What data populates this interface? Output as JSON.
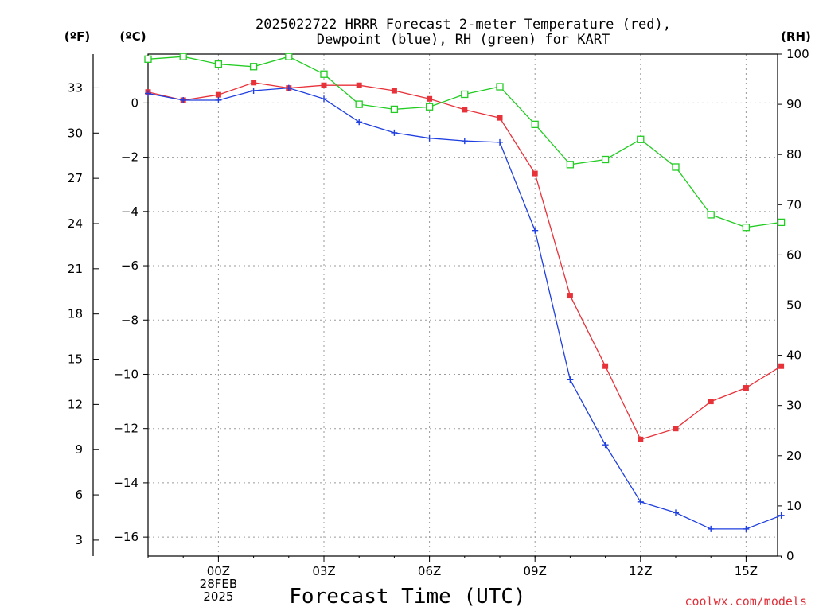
{
  "title_line1": "2025022722 HRRR Forecast 2-meter Temperature (red),",
  "title_line2": "Dewpoint (blue), RH (green) for KART",
  "unit_f": "(ºF)",
  "unit_c": "(ºC)",
  "unit_rh": "(RH)",
  "xlabel": "Forecast Time (UTC)",
  "credit": "coolwx.com/models",
  "colors": {
    "temperature": "#e8323a",
    "dewpoint": "#1f3fe0",
    "rh": "#22cc22"
  },
  "chart_data": {
    "type": "line",
    "x_unit": "UTC hour (forecast hours starting 2025-02-27 22Z)",
    "x": [
      "22Z",
      "23Z",
      "00Z",
      "01Z",
      "02Z",
      "03Z",
      "04Z",
      "05Z",
      "06Z",
      "07Z",
      "08Z",
      "09Z",
      "10Z",
      "11Z",
      "12Z",
      "13Z",
      "14Z",
      "15Z",
      "16Z"
    ],
    "x_ticks": [
      {
        "at": "00Z",
        "lines": [
          "00Z",
          "28FEB",
          "2025"
        ]
      },
      {
        "at": "03Z",
        "lines": [
          "03Z"
        ]
      },
      {
        "at": "06Z",
        "lines": [
          "06Z"
        ]
      },
      {
        "at": "09Z",
        "lines": [
          "09Z"
        ]
      },
      {
        "at": "12Z",
        "lines": [
          "12Z"
        ]
      },
      {
        "at": "15Z",
        "lines": [
          "15Z"
        ]
      }
    ],
    "y_left_c": {
      "range": [
        -16.7,
        1.8
      ],
      "ticks": [
        0,
        -2,
        -4,
        -6,
        -8,
        -10,
        -12,
        -14,
        -16
      ],
      "tick_labels": [
        "0",
        "−2",
        "−4",
        "−6",
        "−8",
        "−10",
        "−12",
        "−14",
        "−16"
      ]
    },
    "y_left_f": {
      "ticks": [
        33,
        30,
        27,
        24,
        21,
        18,
        15,
        12,
        9,
        6,
        3
      ],
      "tick_labels": [
        "33",
        "30",
        "27",
        "24",
        "21",
        "18",
        "15",
        "12",
        "9",
        "6",
        "3"
      ]
    },
    "y_right_rh": {
      "range": [
        0,
        100
      ],
      "ticks": [
        100,
        90,
        80,
        70,
        60,
        50,
        40,
        30,
        20,
        10,
        0
      ],
      "tick_labels": [
        "100",
        "90",
        "80",
        "70",
        "60",
        "50",
        "40",
        "30",
        "20",
        "10",
        "0"
      ]
    },
    "series": [
      {
        "name": "Temperature",
        "axis": "celsius",
        "marker": "filled-square",
        "color": "#e8323a",
        "values": [
          0.4,
          0.1,
          0.3,
          0.75,
          0.55,
          0.65,
          0.65,
          0.45,
          0.15,
          -0.25,
          -0.55,
          -2.6,
          -7.1,
          -9.7,
          -12.4,
          -12.0,
          -11.0,
          -10.5,
          -9.7
        ]
      },
      {
        "name": "Dewpoint",
        "axis": "celsius",
        "marker": "plus",
        "color": "#1f3fe0",
        "values": [
          0.35,
          0.1,
          0.1,
          0.45,
          0.55,
          0.15,
          -0.7,
          -1.1,
          -1.3,
          -1.4,
          -1.45,
          -4.7,
          -10.2,
          -12.6,
          -14.7,
          -15.1,
          -15.7,
          -15.7,
          -15.2
        ]
      },
      {
        "name": "RH",
        "axis": "rh",
        "marker": "open-square",
        "color": "#22cc22",
        "values": [
          99,
          99.5,
          98,
          97.5,
          99.5,
          96,
          90,
          89,
          89.5,
          92,
          93.5,
          86,
          78,
          79,
          83,
          77.5,
          68,
          65.5,
          66.5
        ]
      }
    ],
    "grid": true
  }
}
